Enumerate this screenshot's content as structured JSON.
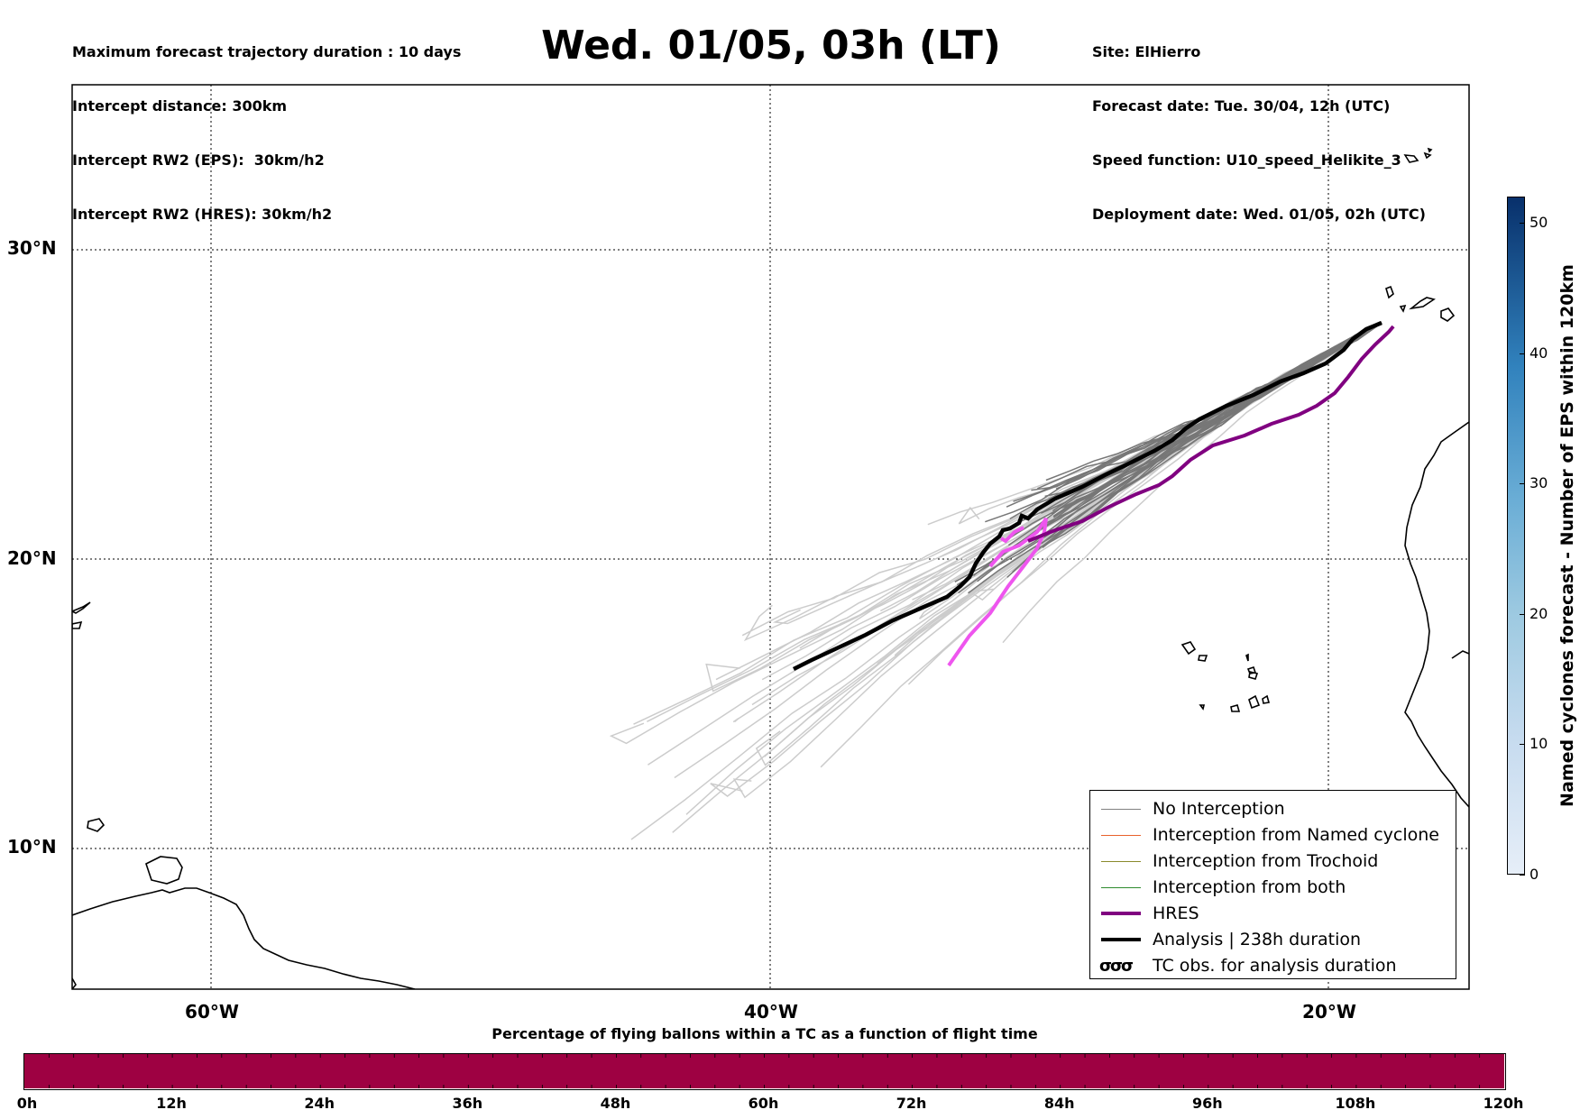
{
  "header": {
    "info_left": [
      "Maximum forecast trajectory duration : 10 days",
      "Intercept distance: 300km",
      "Intercept RW2 (EPS):  30km/h2",
      "Intercept RW2 (HRES): 30km/h2"
    ],
    "title": "Wed. 01/05, 03h (LT)",
    "info_right": [
      "Site: ElHierro",
      "Forecast date: Tue. 30/04, 12h (UTC)",
      "Speed function: U10_speed_Helikite_3",
      "Deployment date: Wed. 01/05, 02h (UTC)"
    ]
  },
  "map": {
    "lat_labels": [
      "30°N",
      "20°N",
      "10°N"
    ],
    "lon_labels": [
      "60°W",
      "40°W",
      "20°W"
    ],
    "grid": true,
    "colors": {
      "eps_near": "#777777",
      "eps_far": "#cccccc",
      "hres": "#800080",
      "hres_early": "#ee55ee",
      "analysis": "#000000"
    }
  },
  "legend": {
    "items": [
      {
        "label": "No Interception",
        "color": "#808080",
        "style": "thin"
      },
      {
        "label": "Interception from Named cyclone",
        "color": "#e8622c",
        "style": "thin"
      },
      {
        "label": "Interception from Trochoid",
        "color": "#8a8a2c",
        "style": "thin"
      },
      {
        "label": "Interception from both",
        "color": "#2e8b2e",
        "style": "thin"
      },
      {
        "label": "HRES",
        "color": "#800080",
        "style": "thick"
      },
      {
        "label": "Analysis | 238h duration",
        "color": "#000000",
        "style": "thick"
      },
      {
        "label": "TC obs. for analysis duration",
        "color": "#000000",
        "style": "symbol",
        "symbol": "σσσ"
      }
    ]
  },
  "colorbar_vertical": {
    "label": "Named cyclones forecast - Number of EPS within 120km",
    "ticks": [
      "0",
      "10",
      "20",
      "30",
      "40",
      "50"
    ],
    "max": 52
  },
  "colorbar_horizontal": {
    "title": "Percentage of flying ballons within a TC as a function of flight time",
    "ticks": [
      "0h",
      "12h",
      "24h",
      "36h",
      "48h",
      "60h",
      "72h",
      "84h",
      "96h",
      "108h",
      "120h"
    ],
    "fill_color": "#9e0142"
  }
}
